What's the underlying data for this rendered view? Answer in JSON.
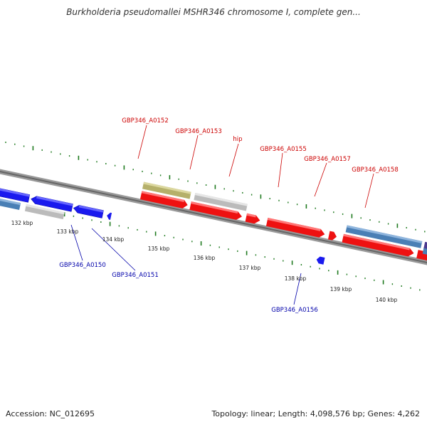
{
  "title": "Burkholderia pseudomallei MSHR346 chromosome I, complete gen...",
  "footer": {
    "accession": "Accession: NC_012695",
    "summary": "Topology: linear; Length: 4,098,576 bp; Genes: 4,262"
  },
  "colors": {
    "forward_gene": "#ee1111",
    "reverse_gene": "#1a1aee",
    "pseudo_gene": "#bbbbbb",
    "steel_gene": "#4a7fb5",
    "olive_gene": "#b5b06a",
    "purple_gene": "#4b3a8f",
    "forward_label": "#cc0000",
    "reverse_label": "#0000aa",
    "tick": "#1f7a1f",
    "axis": "#777777"
  },
  "kbp_labels": [
    "132 kbp",
    "133 kbp",
    "134 kbp",
    "135 kbp",
    "136 kbp",
    "137 kbp",
    "138 kbp",
    "139 kbp",
    "140 kbp"
  ],
  "top_labels": [
    "GBP346_A0152",
    "GBP346_A0153",
    "hip",
    "GBP346_A0155",
    "GBP346_A0157",
    "GBP346_A0158"
  ],
  "bottom_labels": [
    "GBP346_A0150",
    "GBP346_A0151",
    "GBP346_A0156"
  ]
}
